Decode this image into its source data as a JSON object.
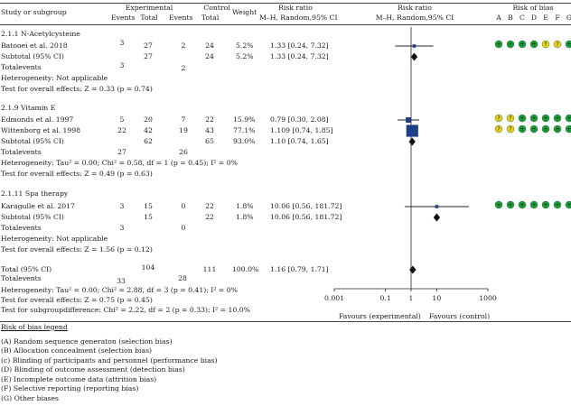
{
  "header": {
    "study_col": "Study or subgroup",
    "experimental": "Experimental",
    "control": "Control",
    "events": "Events",
    "total": "Total",
    "weight": "Weight",
    "risk_ratio": "Risk ratio",
    "method": "M–H, Random,95% CI",
    "risk_of_bias": "Risk of bias",
    "bias_letters": [
      "A",
      "B",
      "C",
      "D",
      "E",
      "F",
      "G"
    ]
  },
  "groups": [
    {
      "name": "2.1.1 N-Acetylcysteine",
      "studies": [
        {
          "name": "Batooei et al. 2018",
          "e_events": "3",
          "e_total": "27",
          "c_events": "2",
          "c_total": "24",
          "weight": "5.2%",
          "ci": "1.33 [0.24, 7.32]",
          "rr": 1.33,
          "lo": 0.24,
          "hi": 7.32,
          "w": 5.2,
          "bias": [
            "green",
            "green",
            "green",
            "green",
            "yellow",
            "yellow",
            "green"
          ]
        }
      ],
      "subtotal_label": "Subtotal (95% CI)",
      "subtotal_e_total": "27",
      "subtotal_c_total": "24",
      "subtotal_weight": "5.2%",
      "subtotal_ci": "1.33 [0.24, 7.32]",
      "sub_rr": 1.33,
      "sub_lo": 0.24,
      "sub_hi": 7.32,
      "totalevents_label": "Totalevents",
      "totalevents_e": "3",
      "totalevents_c": "2",
      "heterogeneity": "Heterogeneity: Not applicable",
      "overall": "Test for overall effects: Z = 0.33 (p = 0.74)"
    },
    {
      "name": "2.1.9 Vitamin E",
      "studies": [
        {
          "name": "Edmonds et al. 1997",
          "e_events": "5",
          "e_total": "20",
          "c_events": "7",
          "c_total": "22",
          "weight": "15.9%",
          "ci": "0.79 [0.30, 2.08]",
          "rr": 0.79,
          "lo": 0.3,
          "hi": 2.08,
          "w": 15.9,
          "bias": [
            "yellow",
            "yellow",
            "green",
            "green",
            "green",
            "green",
            "green"
          ]
        },
        {
          "name": "Wittenborg et al. 1998",
          "e_events": "22",
          "e_total": "42",
          "c_events": "19",
          "c_total": "43",
          "weight": "77.1%",
          "ci": "1.109 [0.74, 1.85]",
          "rr": 1.109,
          "lo": 0.74,
          "hi": 1.85,
          "w": 77.1,
          "bias": [
            "yellow",
            "yellow",
            "green",
            "green",
            "green",
            "green",
            "green"
          ]
        }
      ],
      "subtotal_label": "Subtotal (95% CI)",
      "subtotal_e_total": "62",
      "subtotal_c_total": "65",
      "subtotal_weight": "93.0%",
      "subtotal_ci": "1.10 [0.74, 1.65]",
      "sub_rr": 1.1,
      "sub_lo": 0.74,
      "sub_hi": 1.65,
      "totalevents_label": "Totalevents",
      "totalevents_e": "27",
      "totalevents_c": "26",
      "heterogeneity": "Heterogeneity: Tau² = 0.00; Chi² = 0.58, df = 1 (p = 0.45); I² = 0%",
      "overall": "Test for overall effects: Z = 0.49 (p = 0.63)"
    },
    {
      "name": "2.1.11 Spa therapy",
      "studies": [
        {
          "name": "Karagulle et al. 2017",
          "e_events": "3",
          "e_total": "15",
          "c_events": "0",
          "c_total": "22",
          "weight": "1.8%",
          "ci": "10.06 [0.56, 181.72]",
          "rr": 10.06,
          "lo": 0.56,
          "hi": 181.72,
          "w": 1.8,
          "bias": [
            "green",
            "green",
            "green",
            "green",
            "green",
            "green",
            "green"
          ]
        }
      ],
      "subtotal_label": "Subtotal (95% CI)",
      "subtotal_e_total": "15",
      "subtotal_c_total": "22",
      "subtotal_weight": "1.8%",
      "subtotal_ci": "10.06 [0.56, 181.72]",
      "sub_rr": 10.06,
      "sub_lo": 0.56,
      "sub_hi": 181.72,
      "totalevents_label": "Totalevents",
      "totalevents_e": "3",
      "totalevents_c": "0",
      "heterogeneity": "Heterogeneity: Not applicable",
      "overall": "Test for overall effects: Z = 1.56 (p = 0.12)"
    }
  ],
  "total": {
    "label": "Total (95% CI)",
    "e_total": "104",
    "c_total": "111",
    "weight": "100.0%",
    "ci": "1.16 [0.79, 1.71]",
    "rr": 1.16,
    "lo": 0.79,
    "hi": 1.71,
    "totalevents_label": "Totalevents",
    "totalevents_e": "33",
    "totalevents_c": "28",
    "heterogeneity": "Heterogeneity: Tau² = 0.00; Chi² = 2.88, df = 3 (p = 0.41); I² = 0%",
    "overall": "Test for overall effects: Z = 0.75 (p = 0.45)",
    "subgroup": "Test for subgroupdifference: Chi² = 2.22, df = 2 (p = 0.33); I² = 10.0%"
  },
  "axis": {
    "ticks": [
      "0.001",
      "0.1",
      "1",
      "10",
      "1000"
    ],
    "tick_values": [
      0.001,
      0.1,
      1,
      10,
      1000
    ],
    "favours_left": "Favours (experimental)",
    "favours_right": "Favours (control)"
  },
  "legend": {
    "title": "Risk of bias legend",
    "items": [
      "(A) Random sequence generaton (selection bias)",
      "(B) Allocation concealment (selection bias)",
      "(c) Blinding of participants and personnel (performance bias)",
      "(D) Blinding of outcome assessment (detection bias)",
      "(E) Incomplete outcome data (attrition bias)",
      "(F) Selective reporting (reporting bias)",
      "(G) Other biases"
    ]
  },
  "colors": {
    "green": "#1e9e3a",
    "yellow": "#e9d21c",
    "square": "#1c3f86",
    "diamond": "#111111"
  },
  "chart_data": {
    "type": "forest",
    "scale": "log",
    "xlim": [
      0.001,
      1000
    ],
    "null_line": 1,
    "studies": [
      {
        "name": "Batooei et al. 2018",
        "rr": 1.33,
        "ci": [
          0.24,
          7.32
        ],
        "weight": 5.2
      },
      {
        "name": "Edmonds et al. 1997",
        "rr": 0.79,
        "ci": [
          0.3,
          2.08
        ],
        "weight": 15.9
      },
      {
        "name": "Wittenborg et al. 1998",
        "rr": 1.109,
        "ci": [
          0.74,
          1.85
        ],
        "weight": 77.1
      },
      {
        "name": "Karagulle et al. 2017",
        "rr": 10.06,
        "ci": [
          0.56,
          181.72
        ],
        "weight": 1.8
      }
    ],
    "subtotals": [
      {
        "name": "2.1.1 N-Acetylcysteine",
        "rr": 1.33,
        "ci": [
          0.24,
          7.32
        ]
      },
      {
        "name": "2.1.9 Vitamin E",
        "rr": 1.1,
        "ci": [
          0.74,
          1.65
        ]
      },
      {
        "name": "2.1.11 Spa therapy",
        "rr": 10.06,
        "ci": [
          0.56,
          181.72
        ]
      }
    ],
    "overall": {
      "rr": 1.16,
      "ci": [
        0.79,
        1.71
      ]
    }
  }
}
